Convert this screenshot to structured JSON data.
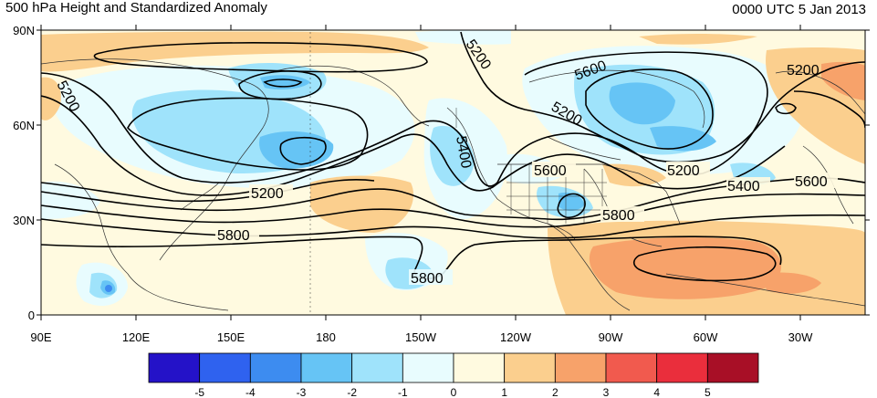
{
  "title": "500 hPa Height and Standardized Anomaly",
  "valid_time": "0000 UTC 5 Jan 2013",
  "lat_labels": [
    "90N",
    "60N",
    "30N",
    "0"
  ],
  "lon_labels": [
    "90E",
    "120E",
    "150E",
    "180",
    "150W",
    "120W",
    "90W",
    "60W",
    "30W"
  ],
  "contour_labels": [
    "5200",
    "5200",
    "5200",
    "5200",
    "5200",
    "5200",
    "5400",
    "5400",
    "5600",
    "5600",
    "5600",
    "5800",
    "5800",
    "5800"
  ],
  "colorbar": {
    "ticks": [
      "-5",
      "-4",
      "-3",
      "-2",
      "-1",
      "0",
      "1",
      "2",
      "3",
      "4",
      "5"
    ],
    "colors": [
      "#2412c8",
      "#2f62ef",
      "#3d8cf0",
      "#66c4f5",
      "#9fe3fb",
      "#e8fcfe",
      "#fffae0",
      "#fbcf8e",
      "#f7a26a",
      "#f15a4e",
      "#ea2e3c",
      "#a80f26"
    ]
  }
}
